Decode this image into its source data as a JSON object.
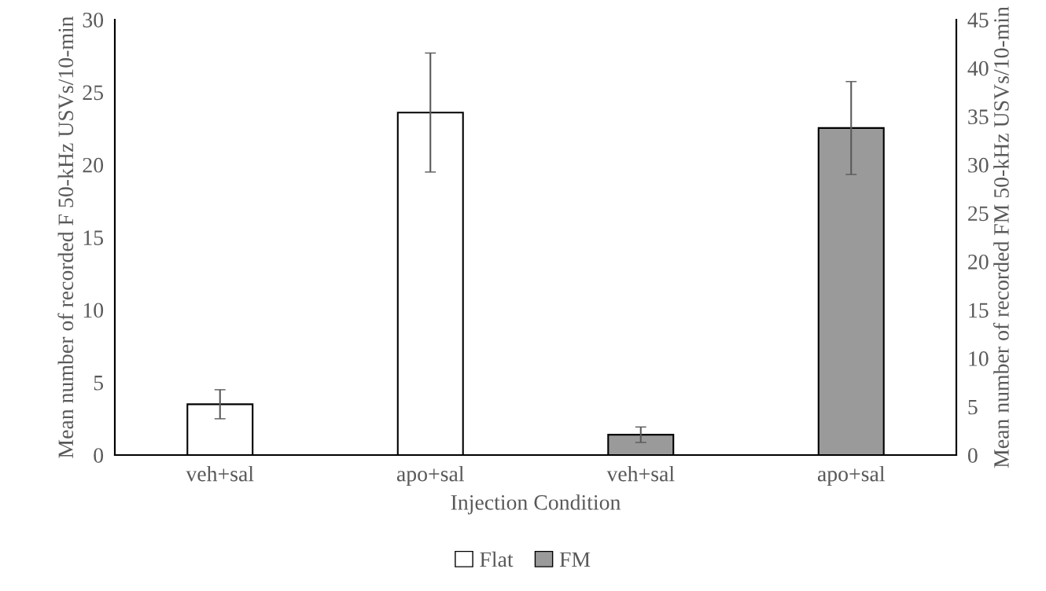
{
  "chart_data": {
    "type": "bar",
    "xlabel": "Injection Condition",
    "ylabel": "Mean number of recorded F 50-kHz USVs/10-min",
    "y2label": "Mean number of recorded FM 50-kHz USVs/10-min",
    "categories": [
      "veh+sal",
      "apo+sal",
      "veh+sal",
      "apo+sal"
    ],
    "series": [
      {
        "name": "Flat",
        "color": "#ffffff",
        "values": [
          3.5,
          23.6,
          null,
          null
        ],
        "errors": [
          1.0,
          4.1,
          null,
          null
        ]
      },
      {
        "name": "FM",
        "color": "#9a9a9a",
        "axis": "y2",
        "values": [
          null,
          null,
          2.1,
          33.8
        ],
        "errors": [
          null,
          null,
          0.8,
          4.8
        ]
      }
    ],
    "ylim": [
      0,
      30
    ],
    "yticks": [
      0,
      5,
      10,
      15,
      20,
      25,
      30
    ],
    "y2lim": [
      0,
      45
    ],
    "y2ticks": [
      0,
      5,
      10,
      15,
      20,
      25,
      30,
      35,
      40,
      45
    ],
    "grid": false,
    "legend": "bottom"
  }
}
